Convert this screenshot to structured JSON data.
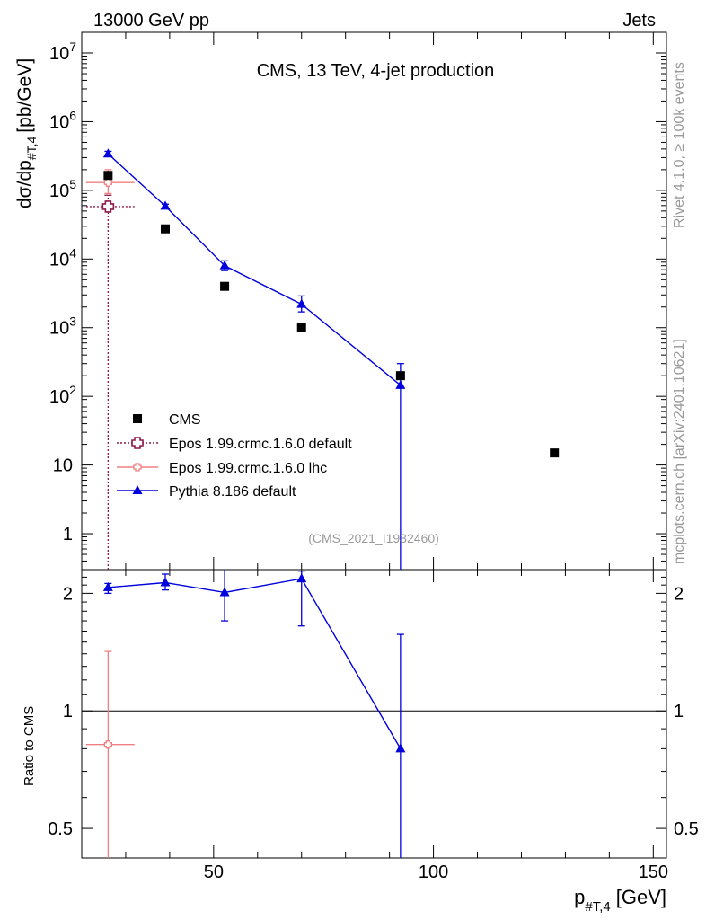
{
  "header": {
    "left": "13000 GeV pp",
    "right": "Jets"
  },
  "side_labels": {
    "rivet": "Rivet 4.1.0, ≥ 100k events",
    "mcplots": "mcplots.cern.ch [arXiv:2401.10621]"
  },
  "colors": {
    "cms": "#000000",
    "epos_default": "#8b1a4a",
    "epos_lhc": "#f08080",
    "pythia": "#0000dd",
    "watermark": "#999999"
  },
  "chart_data": [
    {
      "type": "scatter",
      "panel": "main",
      "title": "CMS, 13 TeV, 4-jet production",
      "watermark": "(CMS_2021_I1932460)",
      "ylabel_main": "dσ/dp",
      "ylabel_sub": "#T,4",
      "ylabel_unit": "[pb/GeV]",
      "yscale": "log",
      "ylim": [
        0.3,
        20000000
      ],
      "xlim": [
        20,
        153
      ],
      "ytick_labels": [
        {
          "v": 1,
          "base": "1",
          "exp": ""
        },
        {
          "v": 10,
          "base": "10",
          "exp": ""
        },
        {
          "v": 100,
          "base": "10",
          "exp": "2"
        },
        {
          "v": 1000,
          "base": "10",
          "exp": "3"
        },
        {
          "v": 10000,
          "base": "10",
          "exp": "4"
        },
        {
          "v": 100000,
          "base": "10",
          "exp": "5"
        },
        {
          "v": 1000000,
          "base": "10",
          "exp": "6"
        },
        {
          "v": 10000000,
          "base": "10",
          "exp": "7"
        }
      ],
      "legend": [
        {
          "label": "CMS",
          "key": "cms"
        },
        {
          "label": "Epos 1.99.crmc.1.6.0 default",
          "key": "epos_default"
        },
        {
          "label": "Epos 1.99.crmc.1.6.0 lhc",
          "key": "epos_lhc"
        },
        {
          "label": "Pythia 8.186 default",
          "key": "pythia"
        }
      ],
      "series": [
        {
          "name": "CMS",
          "key": "cms",
          "marker": "square",
          "x": [
            26,
            39,
            52.5,
            70,
            92.5,
            127.5
          ],
          "y": [
            165000,
            27500,
            4000,
            1000,
            200,
            15
          ]
        },
        {
          "name": "Epos 1.99.crmc.1.6.0 default",
          "key": "epos_default",
          "marker": "cross",
          "x": [
            26
          ],
          "y": [
            58000
          ],
          "xerr": [
            [
              21,
              32
            ]
          ],
          "yerr": [
            [
              0.1,
              85000
            ]
          ]
        },
        {
          "name": "Epos 1.99.crmc.1.6.0 lhc",
          "key": "epos_lhc",
          "marker": "cross-small",
          "x": [
            26
          ],
          "y": [
            130000
          ],
          "xerr": [
            [
              21,
              32
            ]
          ],
          "yerr": [
            [
              90000,
              200000
            ]
          ]
        },
        {
          "name": "Pythia 8.186 default",
          "key": "pythia",
          "marker": "triangle",
          "line": true,
          "x": [
            26,
            39,
            52.5,
            70,
            92.5
          ],
          "y": [
            340000,
            59000,
            8000,
            2200,
            145
          ],
          "yerr": [
            [
              320000,
              370000
            ],
            [
              56000,
              63000
            ],
            [
              6800,
              9400
            ],
            [
              1700,
              2900
            ],
            [
              0.1,
              300
            ]
          ]
        }
      ]
    },
    {
      "type": "line",
      "panel": "ratio",
      "ylabel": "Ratio to CMS",
      "xlabel_main": "p",
      "xlabel_sub": "#T,4",
      "xlabel_unit": "[GeV]",
      "yscale": "log",
      "ylim": [
        0.42,
        2.3
      ],
      "xlim": [
        20,
        153
      ],
      "reference_line": 1,
      "ytick_labels": [
        {
          "v": 0.5,
          "text": "0.5"
        },
        {
          "v": 1,
          "text": "1"
        },
        {
          "v": 2,
          "text": "2"
        }
      ],
      "xtick_labels": [
        {
          "v": 50,
          "text": "50"
        },
        {
          "v": 100,
          "text": "100"
        },
        {
          "v": 150,
          "text": "150"
        }
      ],
      "series": [
        {
          "name": "Epos 1.99.crmc.1.6.0 lhc",
          "key": "epos_lhc",
          "marker": "cross-small",
          "x": [
            26
          ],
          "y": [
            0.82
          ],
          "xerr": [
            [
              21,
              32
            ]
          ],
          "yerr": [
            [
              0.3,
              1.42
            ]
          ]
        },
        {
          "name": "Pythia 8.186 default",
          "key": "pythia",
          "marker": "triangle",
          "line": true,
          "x": [
            26,
            39,
            52.5,
            70,
            92.5
          ],
          "y": [
            2.07,
            2.13,
            2.01,
            2.18,
            0.8
          ],
          "yerr": [
            [
              2.0,
              2.12
            ],
            [
              2.04,
              2.24
            ],
            [
              1.7,
              2.32
            ],
            [
              1.65,
              2.28
            ],
            [
              0.3,
              1.57
            ]
          ]
        }
      ]
    }
  ]
}
